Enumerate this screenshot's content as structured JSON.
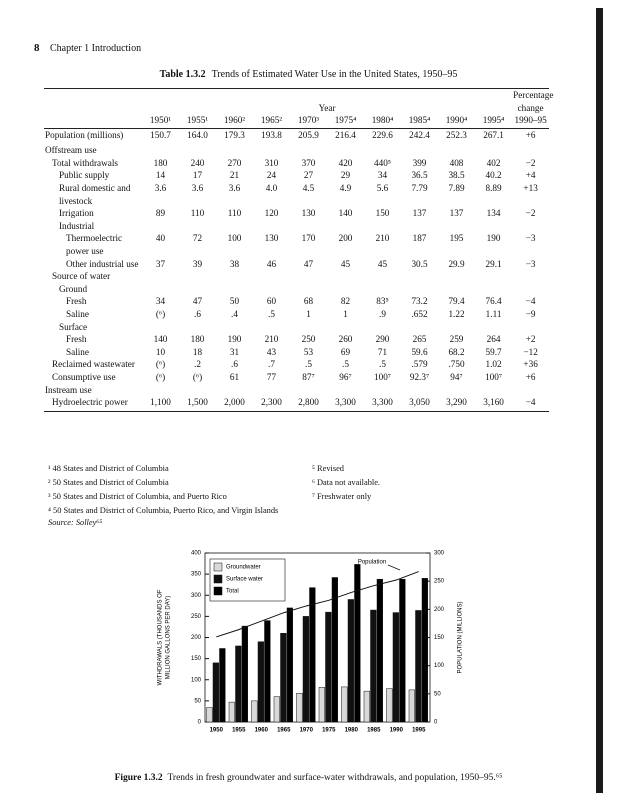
{
  "header": {
    "page_number": "8",
    "chapter": "Chapter 1  Introduction"
  },
  "table": {
    "label": "Table 1.3.2",
    "title": "Trends of Estimated Water Use in the United States, 1950–95",
    "year_header": "Year",
    "change_header": [
      "Percentage",
      "change"
    ],
    "columns": [
      "1950¹",
      "1955¹",
      "1960²",
      "1965²",
      "1970³",
      "1975⁴",
      "1980⁴",
      "1985⁴",
      "1990⁴",
      "1995⁴",
      "1990–95"
    ],
    "rows": [
      {
        "label": "Population (millions)",
        "values": [
          "150.7",
          "164.0",
          "179.3",
          "193.8",
          "205.9",
          "216.4",
          "229.6",
          "242.4",
          "252.3",
          "267.1",
          "+6"
        ]
      },
      {
        "label": "Offstream use"
      },
      {
        "label": "Total withdrawals",
        "values": [
          "180",
          "240",
          "270",
          "310",
          "370",
          "420",
          "440⁵",
          "399",
          "408",
          "402",
          "−2"
        ]
      },
      {
        "label": "Public supply",
        "values": [
          "14",
          "17",
          "21",
          "24",
          "27",
          "29",
          "34",
          "36.5",
          "38.5",
          "40.2",
          "+4"
        ]
      },
      {
        "label": "Rural domestic and livestock",
        "values": [
          "3.6",
          "3.6",
          "3.6",
          "4.0",
          "4.5",
          "4.9",
          "5.6",
          "7.79",
          "7.89",
          "8.89",
          "+13"
        ]
      },
      {
        "label": "Irrigation",
        "values": [
          "89",
          "110",
          "110",
          "120",
          "130",
          "140",
          "150",
          "137",
          "137",
          "134",
          "−2"
        ]
      },
      {
        "label": "Industrial"
      },
      {
        "label": "Thermoelectric power use",
        "values": [
          "40",
          "72",
          "100",
          "130",
          "170",
          "200",
          "210",
          "187",
          "195",
          "190",
          "−3"
        ]
      },
      {
        "label": "Other industrial use",
        "values": [
          "37",
          "39",
          "38",
          "46",
          "47",
          "45",
          "45",
          "30.5",
          "29.9",
          "29.1",
          "−3"
        ]
      },
      {
        "label": "Source of water"
      },
      {
        "label": "Ground"
      },
      {
        "label": "Fresh",
        "values": [
          "34",
          "47",
          "50",
          "60",
          "68",
          "82",
          "83⁵",
          "73.2",
          "79.4",
          "76.4",
          "−4"
        ]
      },
      {
        "label": "Saline",
        "values": [
          "(⁶)",
          ".6",
          ".4",
          ".5",
          "1",
          "1",
          ".9",
          ".652",
          "1.22",
          "1.11",
          "−9"
        ]
      },
      {
        "label": "Surface"
      },
      {
        "label": "Fresh",
        "values": [
          "140",
          "180",
          "190",
          "210",
          "250",
          "260",
          "290",
          "265",
          "259",
          "264",
          "+2"
        ]
      },
      {
        "label": "Saline",
        "values": [
          "10",
          "18",
          "31",
          "43",
          "53",
          "69",
          "71",
          "59.6",
          "68.2",
          "59.7",
          "−12"
        ]
      },
      {
        "label": "Reclaimed wastewater",
        "values": [
          "(⁶)",
          ".2",
          ".6",
          ".7",
          ".5",
          ".5",
          ".5",
          ".579",
          ".750",
          "1.02",
          "+36"
        ]
      },
      {
        "label": "Consumptive use",
        "values": [
          "(⁶)",
          "(⁶)",
          "61",
          "77",
          "87⁷",
          "96⁷",
          "100⁷",
          "92.3⁷",
          "94⁷",
          "100⁷",
          "+6"
        ]
      },
      {
        "label": "Instream use"
      },
      {
        "label": "Hydroelectric power",
        "values": [
          "1,100",
          "1,500",
          "2,000",
          "2,300",
          "2,800",
          "3,300",
          "3,300",
          "3,050",
          "3,290",
          "3,160",
          "−4"
        ]
      }
    ]
  },
  "footnotes": [
    "¹ 48 States and District of Columbia",
    "² 50 States and District of Columbia",
    "³ 50 States and District of Columbia, and Puerto Rico",
    "⁴ 50 States and District of Columbia, Puerto Rico, and Virgin Islands",
    "⁵ Revised",
    "⁶ Data not available.",
    "⁷ Freshwater only"
  ],
  "source": "Source: Solley⁶⁵",
  "chart_data": {
    "type": "bar",
    "categories": [
      "1950",
      "1955",
      "1960",
      "1965",
      "1970",
      "1975",
      "1980",
      "1985",
      "1990",
      "1995"
    ],
    "series": [
      {
        "name": "Groundwater",
        "color": "#d9d9d9",
        "values": [
          34,
          47,
          50,
          60,
          68,
          82,
          83,
          73,
          79,
          76
        ]
      },
      {
        "name": "Surface water",
        "color": "#111111",
        "values": [
          140,
          180,
          190,
          210,
          250,
          260,
          290,
          265,
          259,
          264
        ]
      },
      {
        "name": "Total",
        "color": "#000000",
        "values": [
          174,
          227,
          240,
          270,
          318,
          342,
          373,
          338,
          338,
          340
        ]
      },
      {
        "name": "Population",
        "color": "#111111",
        "axis": "y2",
        "values": [
          151,
          164,
          179,
          194,
          206,
          216,
          230,
          242,
          252,
          267
        ]
      }
    ],
    "y_label": [
      "WITHDRAWALS (THOUSANDS OF",
      "MILLION GALLONS PER DAY)"
    ],
    "y2_label": "POPULATION (MILLIONS)",
    "ylim": [
      0,
      400
    ],
    "yticks": [
      0,
      50,
      100,
      150,
      200,
      250,
      300,
      350,
      400
    ],
    "y2lim": [
      0,
      300
    ],
    "y2ticks": [
      0,
      50,
      100,
      150,
      200,
      250,
      300
    ]
  },
  "caption": {
    "label": "Figure 1.3.2",
    "text": "Trends in fresh groundwater and surface-water withdrawals, and population, 1950–95.⁶⁵"
  }
}
